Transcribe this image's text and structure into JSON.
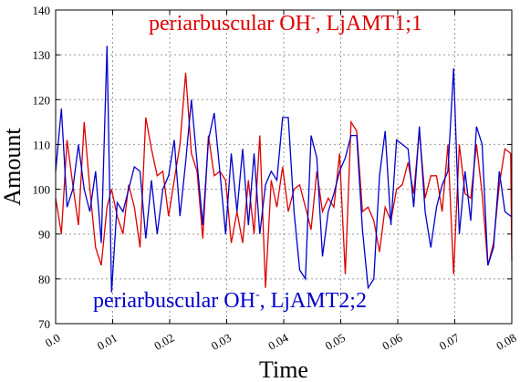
{
  "chart_data": {
    "type": "line",
    "xlabel": "Time",
    "ylabel": "Amount",
    "xlim": [
      0,
      0.08
    ],
    "ylim": [
      70,
      140
    ],
    "grid": true,
    "x_ticks": [
      "0.0",
      "0.01",
      "0.02",
      "0.03",
      "0.04",
      "0.05",
      "0.06",
      "0.07",
      "0.08"
    ],
    "y_ticks": [
      "70",
      "80",
      "90",
      "100",
      "110",
      "120",
      "130",
      "140"
    ],
    "annotations": [
      {
        "base": "periarbuscular OH",
        "sup": "-",
        "rest": ", LjAMT1;1",
        "color": "#dd0000"
      },
      {
        "base": "periarbuscular OH",
        "sup": "-",
        "rest": ", LjAMT2;2",
        "color": "#0000cc"
      }
    ],
    "series": [
      {
        "color": "#dd0000",
        "x": [
          0.0,
          0.001,
          0.002,
          0.003,
          0.004,
          0.005,
          0.006,
          0.007,
          0.008,
          0.009,
          0.0098,
          0.0108,
          0.0118,
          0.0128,
          0.0138,
          0.0148,
          0.0158,
          0.0168,
          0.0178,
          0.0188,
          0.0198,
          0.0208,
          0.0218,
          0.0228,
          0.0238,
          0.0248,
          0.0258,
          0.0268,
          0.0278,
          0.0288,
          0.0298,
          0.0308,
          0.0318,
          0.0328,
          0.0338,
          0.0348,
          0.0358,
          0.0368,
          0.0378,
          0.0388,
          0.0398,
          0.0408,
          0.0418,
          0.0428,
          0.0438,
          0.0448,
          0.0458,
          0.0468,
          0.0478,
          0.0488,
          0.0498,
          0.0508,
          0.0518,
          0.0528,
          0.0538,
          0.0548,
          0.0558,
          0.0568,
          0.0578,
          0.0588,
          0.0598,
          0.0608,
          0.0618,
          0.0628,
          0.0638,
          0.0648,
          0.0658,
          0.0668,
          0.0678,
          0.0688,
          0.0698,
          0.0708,
          0.0718,
          0.0728,
          0.0738,
          0.0748,
          0.0758,
          0.0768,
          0.0778,
          0.0788,
          0.0798,
          0.08
        ],
        "values": [
          98,
          90,
          111,
          101,
          92,
          115,
          100,
          87,
          83,
          96,
          100,
          94,
          90,
          101,
          96,
          87,
          116,
          109,
          103,
          104,
          94,
          102,
          110,
          126,
          108,
          104,
          89,
          112,
          103,
          104,
          102,
          88,
          95,
          88,
          102,
          90,
          112,
          78,
          102,
          96,
          105,
          95,
          100,
          101,
          96,
          91,
          104,
          95,
          98,
          96,
          108,
          81,
          115,
          113,
          95,
          96,
          93,
          86,
          96,
          93,
          100,
          101,
          106,
          99,
          113,
          98,
          103,
          103,
          95,
          110,
          81,
          110,
          99,
          98,
          110,
          99,
          83,
          88,
          101,
          109,
          108,
          84
        ]
      },
      {
        "color": "#0000cc",
        "x": [
          0.0,
          0.001,
          0.002,
          0.003,
          0.004,
          0.005,
          0.006,
          0.007,
          0.008,
          0.009,
          0.0098,
          0.0108,
          0.0118,
          0.0128,
          0.0138,
          0.0148,
          0.0158,
          0.0168,
          0.0178,
          0.0188,
          0.0198,
          0.0208,
          0.0218,
          0.0228,
          0.0238,
          0.0248,
          0.0258,
          0.0268,
          0.0278,
          0.0288,
          0.0298,
          0.0308,
          0.0318,
          0.0328,
          0.0338,
          0.0348,
          0.0358,
          0.0368,
          0.0378,
          0.0388,
          0.0398,
          0.0408,
          0.0418,
          0.0428,
          0.0438,
          0.0448,
          0.0458,
          0.0468,
          0.0478,
          0.0488,
          0.0498,
          0.0508,
          0.0518,
          0.0528,
          0.0538,
          0.0548,
          0.0558,
          0.0568,
          0.0578,
          0.0588,
          0.0598,
          0.0608,
          0.0618,
          0.0628,
          0.0638,
          0.0648,
          0.0658,
          0.0668,
          0.0678,
          0.0688,
          0.0698,
          0.0708,
          0.0718,
          0.0728,
          0.0738,
          0.0748,
          0.0758,
          0.0768,
          0.0778,
          0.0788,
          0.0798,
          0.08
        ],
        "values": [
          104,
          118,
          96,
          100,
          110,
          100,
          95,
          104,
          88,
          132,
          77,
          97,
          95,
          100,
          105,
          104,
          89,
          102,
          90,
          100,
          103,
          111,
          94,
          106,
          120,
          106,
          92,
          111,
          117,
          104,
          90,
          108,
          95,
          109,
          92,
          108,
          90,
          101,
          104,
          102,
          116,
          116,
          95,
          82,
          80,
          112,
          107,
          85,
          95,
          99,
          104,
          107,
          112,
          112,
          91,
          78,
          80,
          103,
          113,
          92,
          111,
          110,
          109,
          96,
          114,
          95,
          87,
          96,
          101,
          104,
          127,
          90,
          104,
          93,
          114,
          110,
          83,
          87,
          104,
          95,
          94,
          94
        ]
      }
    ]
  }
}
